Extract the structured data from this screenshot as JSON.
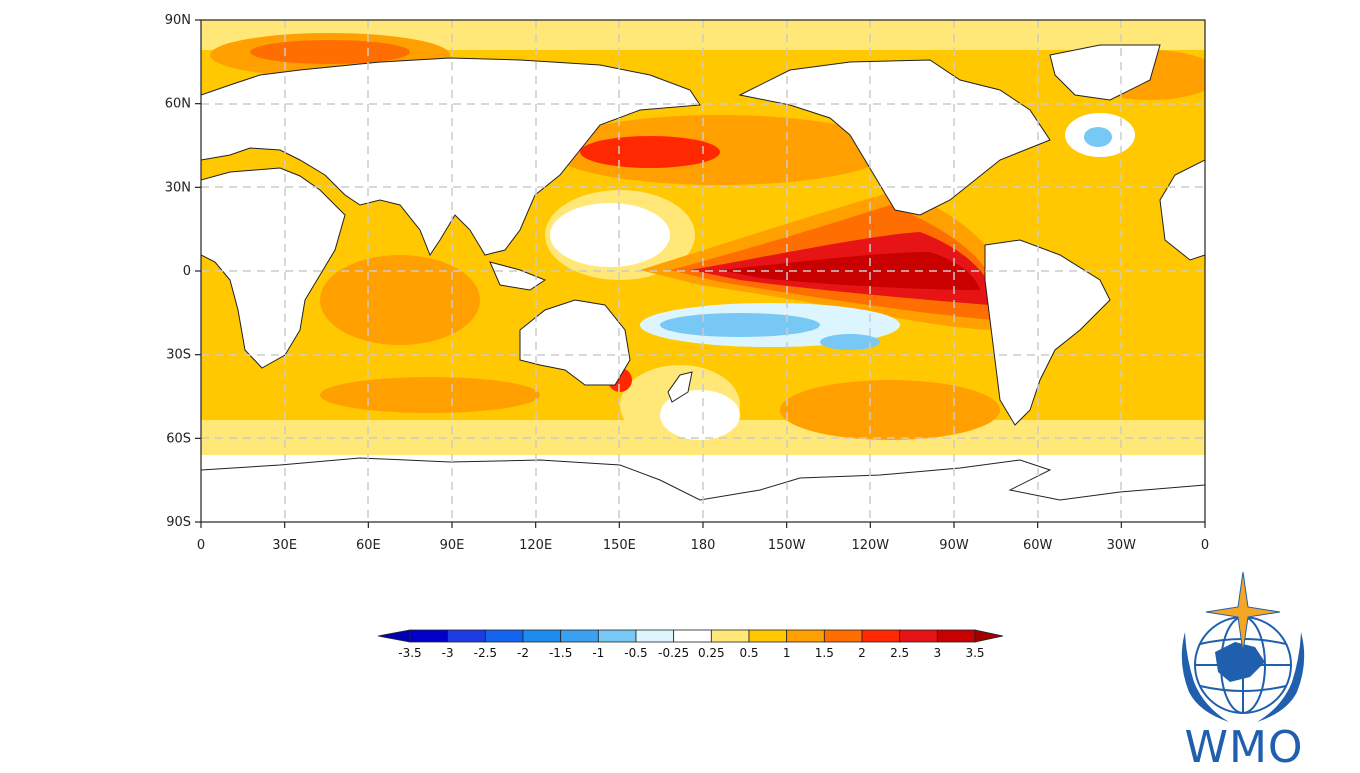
{
  "map": {
    "lat_labels": [
      "90N",
      "60N",
      "30N",
      "0",
      "30S",
      "60S",
      "90S"
    ],
    "lon_labels": [
      "0",
      "30E",
      "60E",
      "90E",
      "120E",
      "150E",
      "180",
      "150W",
      "120W",
      "90W",
      "60W",
      "30W",
      "0"
    ],
    "colorbar": {
      "labels": [
        "-3.5",
        "-3",
        "-2.5",
        "-2",
        "-1.5",
        "-1",
        "-0.5",
        "-0.25",
        "0.25",
        "0.5",
        "1",
        "1.5",
        "2",
        "2.5",
        "3",
        "3.5"
      ],
      "colors": [
        "#0000c8",
        "#1e3ce6",
        "#1464f0",
        "#1e8cf0",
        "#3ca0f0",
        "#78c8f5",
        "#dcf5ff",
        "#ffffff",
        "#ffe878",
        "#ffc800",
        "#ffa000",
        "#ff6e00",
        "#ff2800",
        "#e61414",
        "#c80000"
      ],
      "low_arrow_color": "#0000b4",
      "high_arrow_color": "#a00000"
    }
  },
  "logo": {
    "text": "WMO",
    "color": "#1f5fae"
  }
}
